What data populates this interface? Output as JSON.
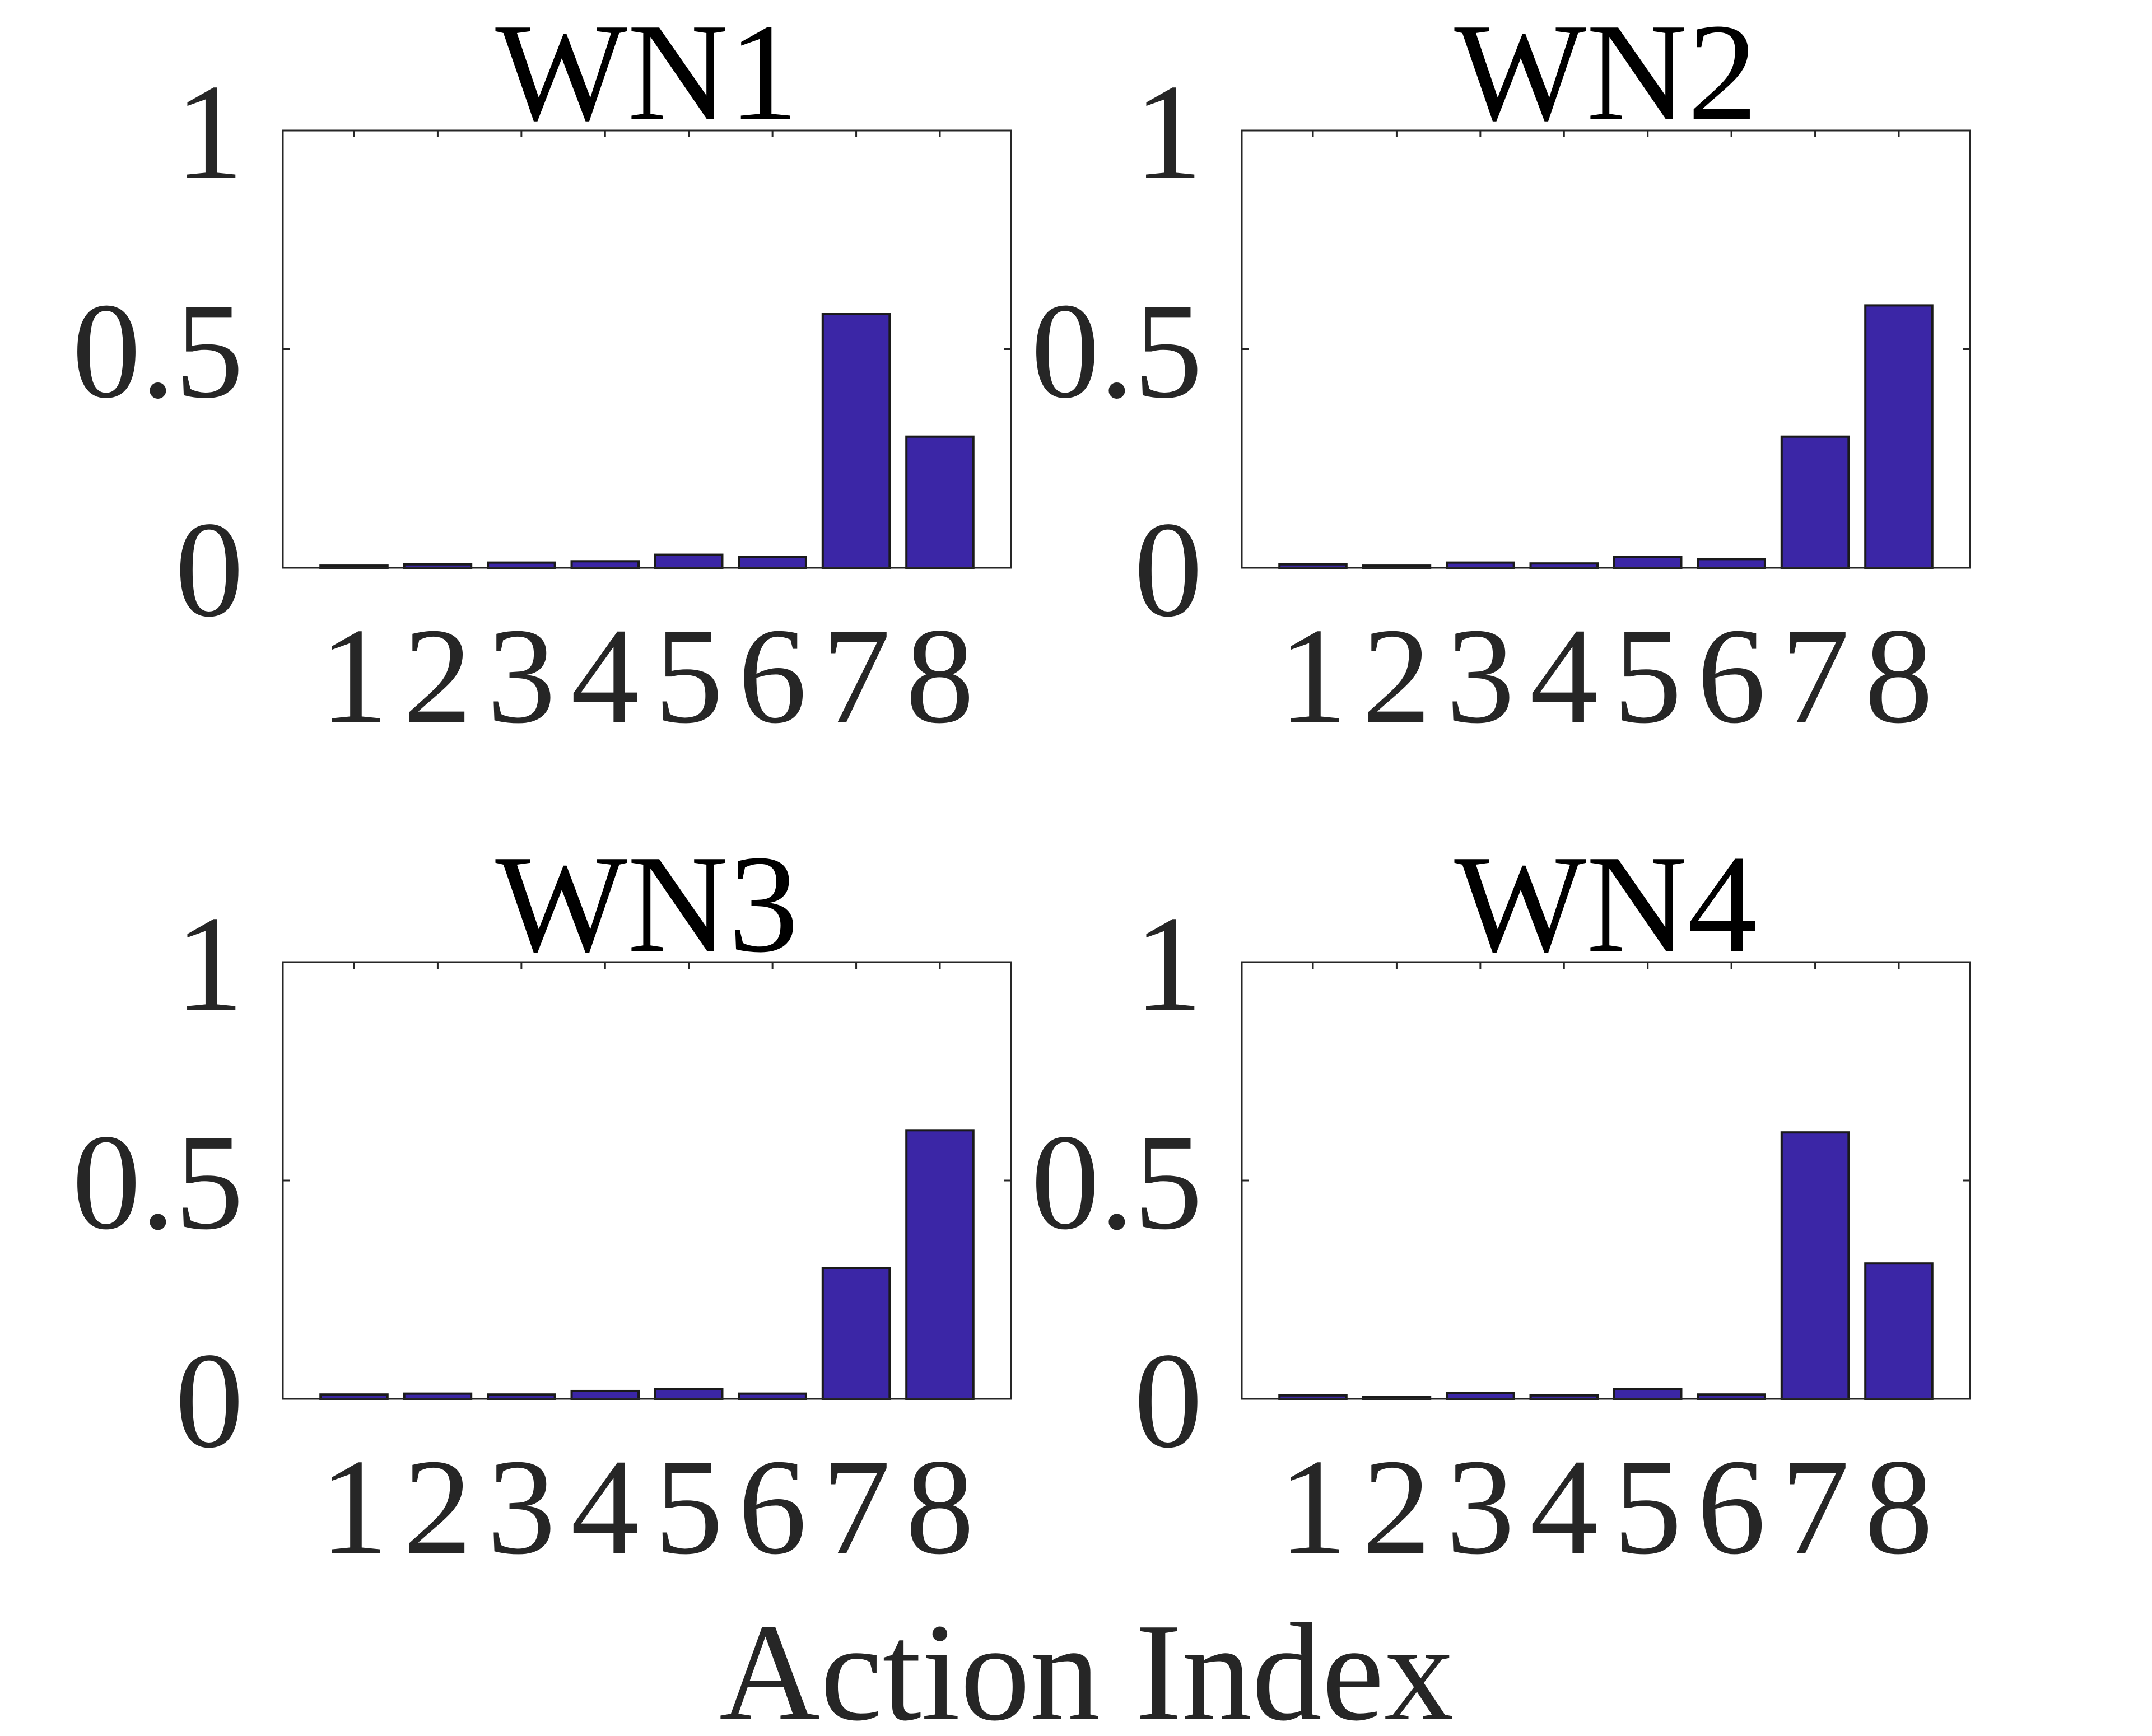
{
  "figure": {
    "xlabel": "Action Index",
    "bar_color": "#3b26a6"
  },
  "chart_data": [
    {
      "type": "bar",
      "title": "WN1",
      "categories": [
        "1",
        "2",
        "3",
        "4",
        "5",
        "6",
        "7",
        "8"
      ],
      "values": [
        0.005,
        0.008,
        0.012,
        0.015,
        0.03,
        0.025,
        0.58,
        0.3
      ],
      "ylim": [
        0,
        1
      ],
      "yticks": [
        "0",
        "0.5",
        "1"
      ],
      "grid": false
    },
    {
      "type": "bar",
      "title": "WN2",
      "categories": [
        "1",
        "2",
        "3",
        "4",
        "5",
        "6",
        "7",
        "8"
      ],
      "values": [
        0.008,
        0.005,
        0.012,
        0.01,
        0.025,
        0.02,
        0.3,
        0.6
      ],
      "ylim": [
        0,
        1
      ],
      "yticks": [
        "0",
        "0.5",
        "1"
      ],
      "grid": false
    },
    {
      "type": "bar",
      "title": "WN3",
      "categories": [
        "1",
        "2",
        "3",
        "4",
        "5",
        "6",
        "7",
        "8"
      ],
      "values": [
        0.01,
        0.012,
        0.01,
        0.018,
        0.022,
        0.012,
        0.3,
        0.615
      ],
      "ylim": [
        0,
        1
      ],
      "yticks": [
        "0",
        "0.5",
        "1"
      ],
      "grid": false
    },
    {
      "type": "bar",
      "title": "WN4",
      "categories": [
        "1",
        "2",
        "3",
        "4",
        "5",
        "6",
        "7",
        "8"
      ],
      "values": [
        0.008,
        0.005,
        0.014,
        0.008,
        0.022,
        0.01,
        0.61,
        0.31
      ],
      "ylim": [
        0,
        1
      ],
      "yticks": [
        "0",
        "0.5",
        "1"
      ],
      "grid": false
    }
  ]
}
